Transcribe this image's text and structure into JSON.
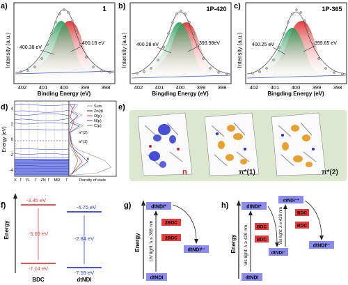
{
  "panels": {
    "a": {
      "letter": "a)",
      "tag": "1",
      "peak_left": "400.38 eV",
      "peak_right": "400.18 eV",
      "xlabel": "Binding Energy (eV)",
      "ylabel": "Intensity (a.u.)",
      "ticks": [
        "402",
        "401",
        "400",
        "399",
        "398"
      ]
    },
    "b": {
      "letter": "b)",
      "tag": "1P-420",
      "peak_left": "400.28 eV",
      "peak_right": "399.98eV",
      "xlabel": "Bingding Energy (eV)",
      "ylabel": "Intensity (a.u.)",
      "ticks": [
        "402",
        "401",
        "400",
        "399",
        "398"
      ]
    },
    "c": {
      "letter": "c)",
      "tag": "1P-365",
      "peak_left": "400.25 eV",
      "peak_right": "399.65 eV",
      "xlabel": "Bingding Energy (eV)",
      "ylabel": "Intensity (a.u.)",
      "ticks": [
        "402",
        "401",
        "400",
        "399",
        "398"
      ]
    },
    "d": {
      "letter": "d)",
      "ylabel": "Energy (eV)",
      "yticks": [
        "4",
        "2",
        "0",
        "-2",
        "-4"
      ],
      "kpoints": [
        "X",
        "Γ",
        "YL",
        "Γ",
        "ZN",
        "Γ",
        "MR",
        "Γ"
      ],
      "xlabel": "Density of state",
      "legend": [
        "Sum",
        "Zn(d)",
        "O(p)",
        "N(p)",
        "C(p)"
      ],
      "legend_colors": [
        "#9aa0a6",
        "#222222",
        "#d93a3a",
        "#2b4fd8",
        "#5b8a3a"
      ],
      "labels": [
        "π*(2)",
        "π*(1)",
        "n"
      ]
    },
    "e": {
      "letter": "e)",
      "labels": [
        "n",
        "π*(1)",
        "π*(2)"
      ]
    },
    "f": {
      "letter": "f)",
      "ylabel": "Energy",
      "bdc": {
        "top": "-3.45 eV",
        "gap": "-3.69 eV",
        "bottom": "-7.14 eV",
        "name": "BDC"
      },
      "dtndi": {
        "top": "-4.75 eV",
        "gap": "-2.84 eV",
        "bottom": "-7.59 eV",
        "name": "dtNDI"
      }
    },
    "g": {
      "letter": "g)",
      "ylabel": "Energy",
      "top": "dtNDI*",
      "bottom": "dtNDI",
      "light": "UV light: λ ≤ 365 nm",
      "bdc1": "2BDC",
      "bdc2": "2BDC",
      "product": "dtNDI²⁻"
    },
    "h": {
      "letter": "h)",
      "ylabel": "Energy",
      "top": "dtNDI*",
      "bottom": "dtNDI",
      "light1": "Vis light: λ ≥ 420 nm",
      "bdc1": "BDC",
      "bdc2": "BDC",
      "mid": "dtNDI⁻",
      "top2": "dtNDI⁻*",
      "light2": "Vis light: λ ≥ 420 nm",
      "bdc3": "BDC",
      "bdc4": "BDC",
      "product": "dtNDI²⁻"
    }
  },
  "colors": {
    "green": "#1f9a55",
    "red": "#e23c3c",
    "blue": "#2b3fd6",
    "lavender": "#8a8cf2",
    "panel_bg": "#dbe8cf"
  }
}
